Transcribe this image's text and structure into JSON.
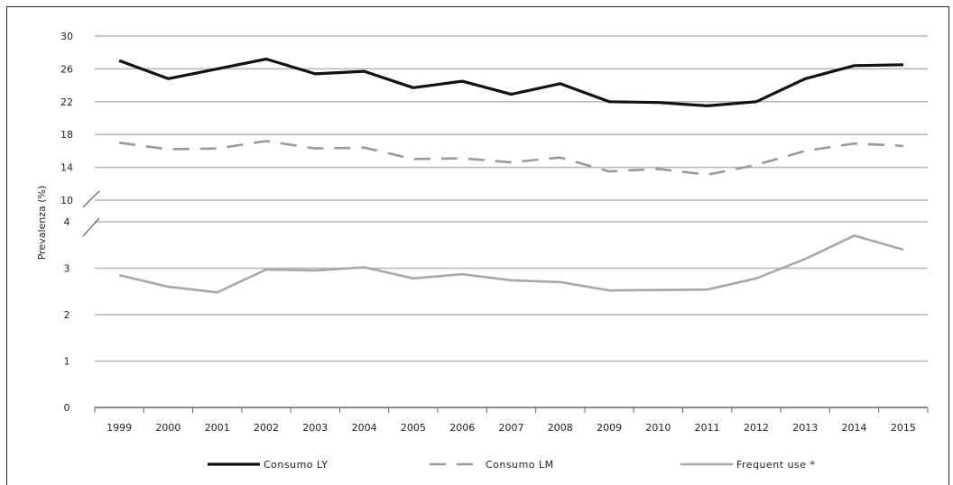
{
  "chart_data": {
    "type": "line",
    "title": "",
    "ylabel": "Prevalenza (%)",
    "xlabel": "",
    "categories": [
      "1999",
      "2000",
      "2001",
      "2002",
      "2003",
      "2004",
      "2005",
      "2006",
      "2007",
      "2008",
      "2009",
      "2010",
      "2011",
      "2012",
      "2013",
      "2014",
      "2015"
    ],
    "axis_break": true,
    "upper_axis": {
      "ylim": [
        10,
        30
      ],
      "ticks": [
        "30",
        "26",
        "22",
        "18",
        "14",
        "10"
      ]
    },
    "lower_axis": {
      "ylim": [
        0,
        4
      ],
      "ticks": [
        "4",
        "3",
        "2",
        "1",
        "0"
      ]
    },
    "grid": true,
    "legend_position": "bottom",
    "series": [
      {
        "name": "Consumo LY",
        "axis": "upper",
        "style": "solid",
        "color": "#111111",
        "values": [
          27.0,
          24.8,
          26.0,
          27.2,
          25.4,
          25.7,
          23.7,
          24.5,
          22.9,
          24.2,
          22.0,
          21.9,
          21.5,
          22.0,
          24.8,
          26.4,
          26.5
        ]
      },
      {
        "name": "Consumo LM",
        "axis": "upper",
        "style": "dashed",
        "color": "#9a9a9a",
        "values": [
          17.0,
          16.2,
          16.3,
          17.2,
          16.3,
          16.4,
          15.0,
          15.1,
          14.6,
          15.2,
          13.5,
          13.8,
          13.1,
          14.3,
          16.0,
          16.9,
          16.6
        ]
      },
      {
        "name": "Frequent use *",
        "axis": "lower",
        "style": "solid",
        "color": "#a8a8a8",
        "values": [
          2.85,
          2.6,
          2.48,
          2.97,
          2.95,
          3.02,
          2.78,
          2.87,
          2.74,
          2.7,
          2.52,
          2.53,
          2.54,
          2.78,
          3.2,
          3.7,
          3.4
        ]
      }
    ]
  }
}
